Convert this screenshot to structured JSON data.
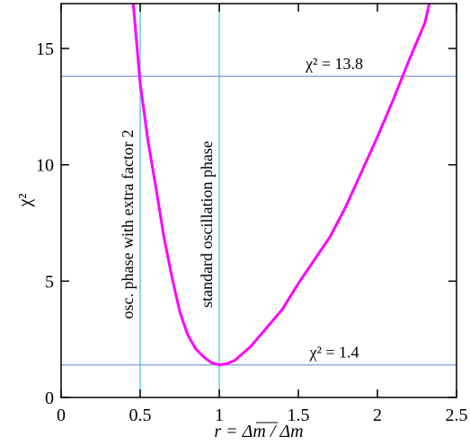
{
  "chart_data": {
    "type": "line",
    "x_label": "r = Δm / Δm",
    "y_label": "χ²",
    "series": [
      {
        "name": "chi2",
        "color": "#ff00ff",
        "x": [
          0.455,
          0.5,
          0.55,
          0.6,
          0.65,
          0.7,
          0.75,
          0.8,
          0.85,
          0.9,
          0.95,
          1.0,
          1.05,
          1.1,
          1.2,
          1.3,
          1.4,
          1.5,
          1.6,
          1.7,
          1.8,
          1.9,
          2.0,
          2.1,
          2.2,
          2.3,
          2.33
        ],
        "values": [
          17,
          13.5,
          11.0,
          9.0,
          6.9,
          5.2,
          3.7,
          2.7,
          2.1,
          1.75,
          1.5,
          1.4,
          1.45,
          1.6,
          2.2,
          3.0,
          3.8,
          4.9,
          5.9,
          6.9,
          8.2,
          9.7,
          11.2,
          12.8,
          14.5,
          16.1,
          17
        ]
      }
    ],
    "hlines": [
      {
        "value": 13.8,
        "label": "χ² = 13.8"
      },
      {
        "value": 1.4,
        "label": "χ² = 1.4"
      }
    ],
    "vlines": [
      {
        "value": 0.5,
        "label": "osc. phase with extra factor 2"
      },
      {
        "value": 1.0,
        "label": "standard oscillation phase"
      }
    ],
    "hline_color": "#8fa8e0",
    "vline_color": "#60d0d0",
    "xlim": [
      0,
      2.5
    ],
    "xticks": [
      0,
      0.5,
      1,
      1.5,
      2,
      2.5
    ],
    "ylim": [
      0,
      16.93
    ],
    "yticks": [
      0,
      5,
      10,
      15
    ]
  }
}
